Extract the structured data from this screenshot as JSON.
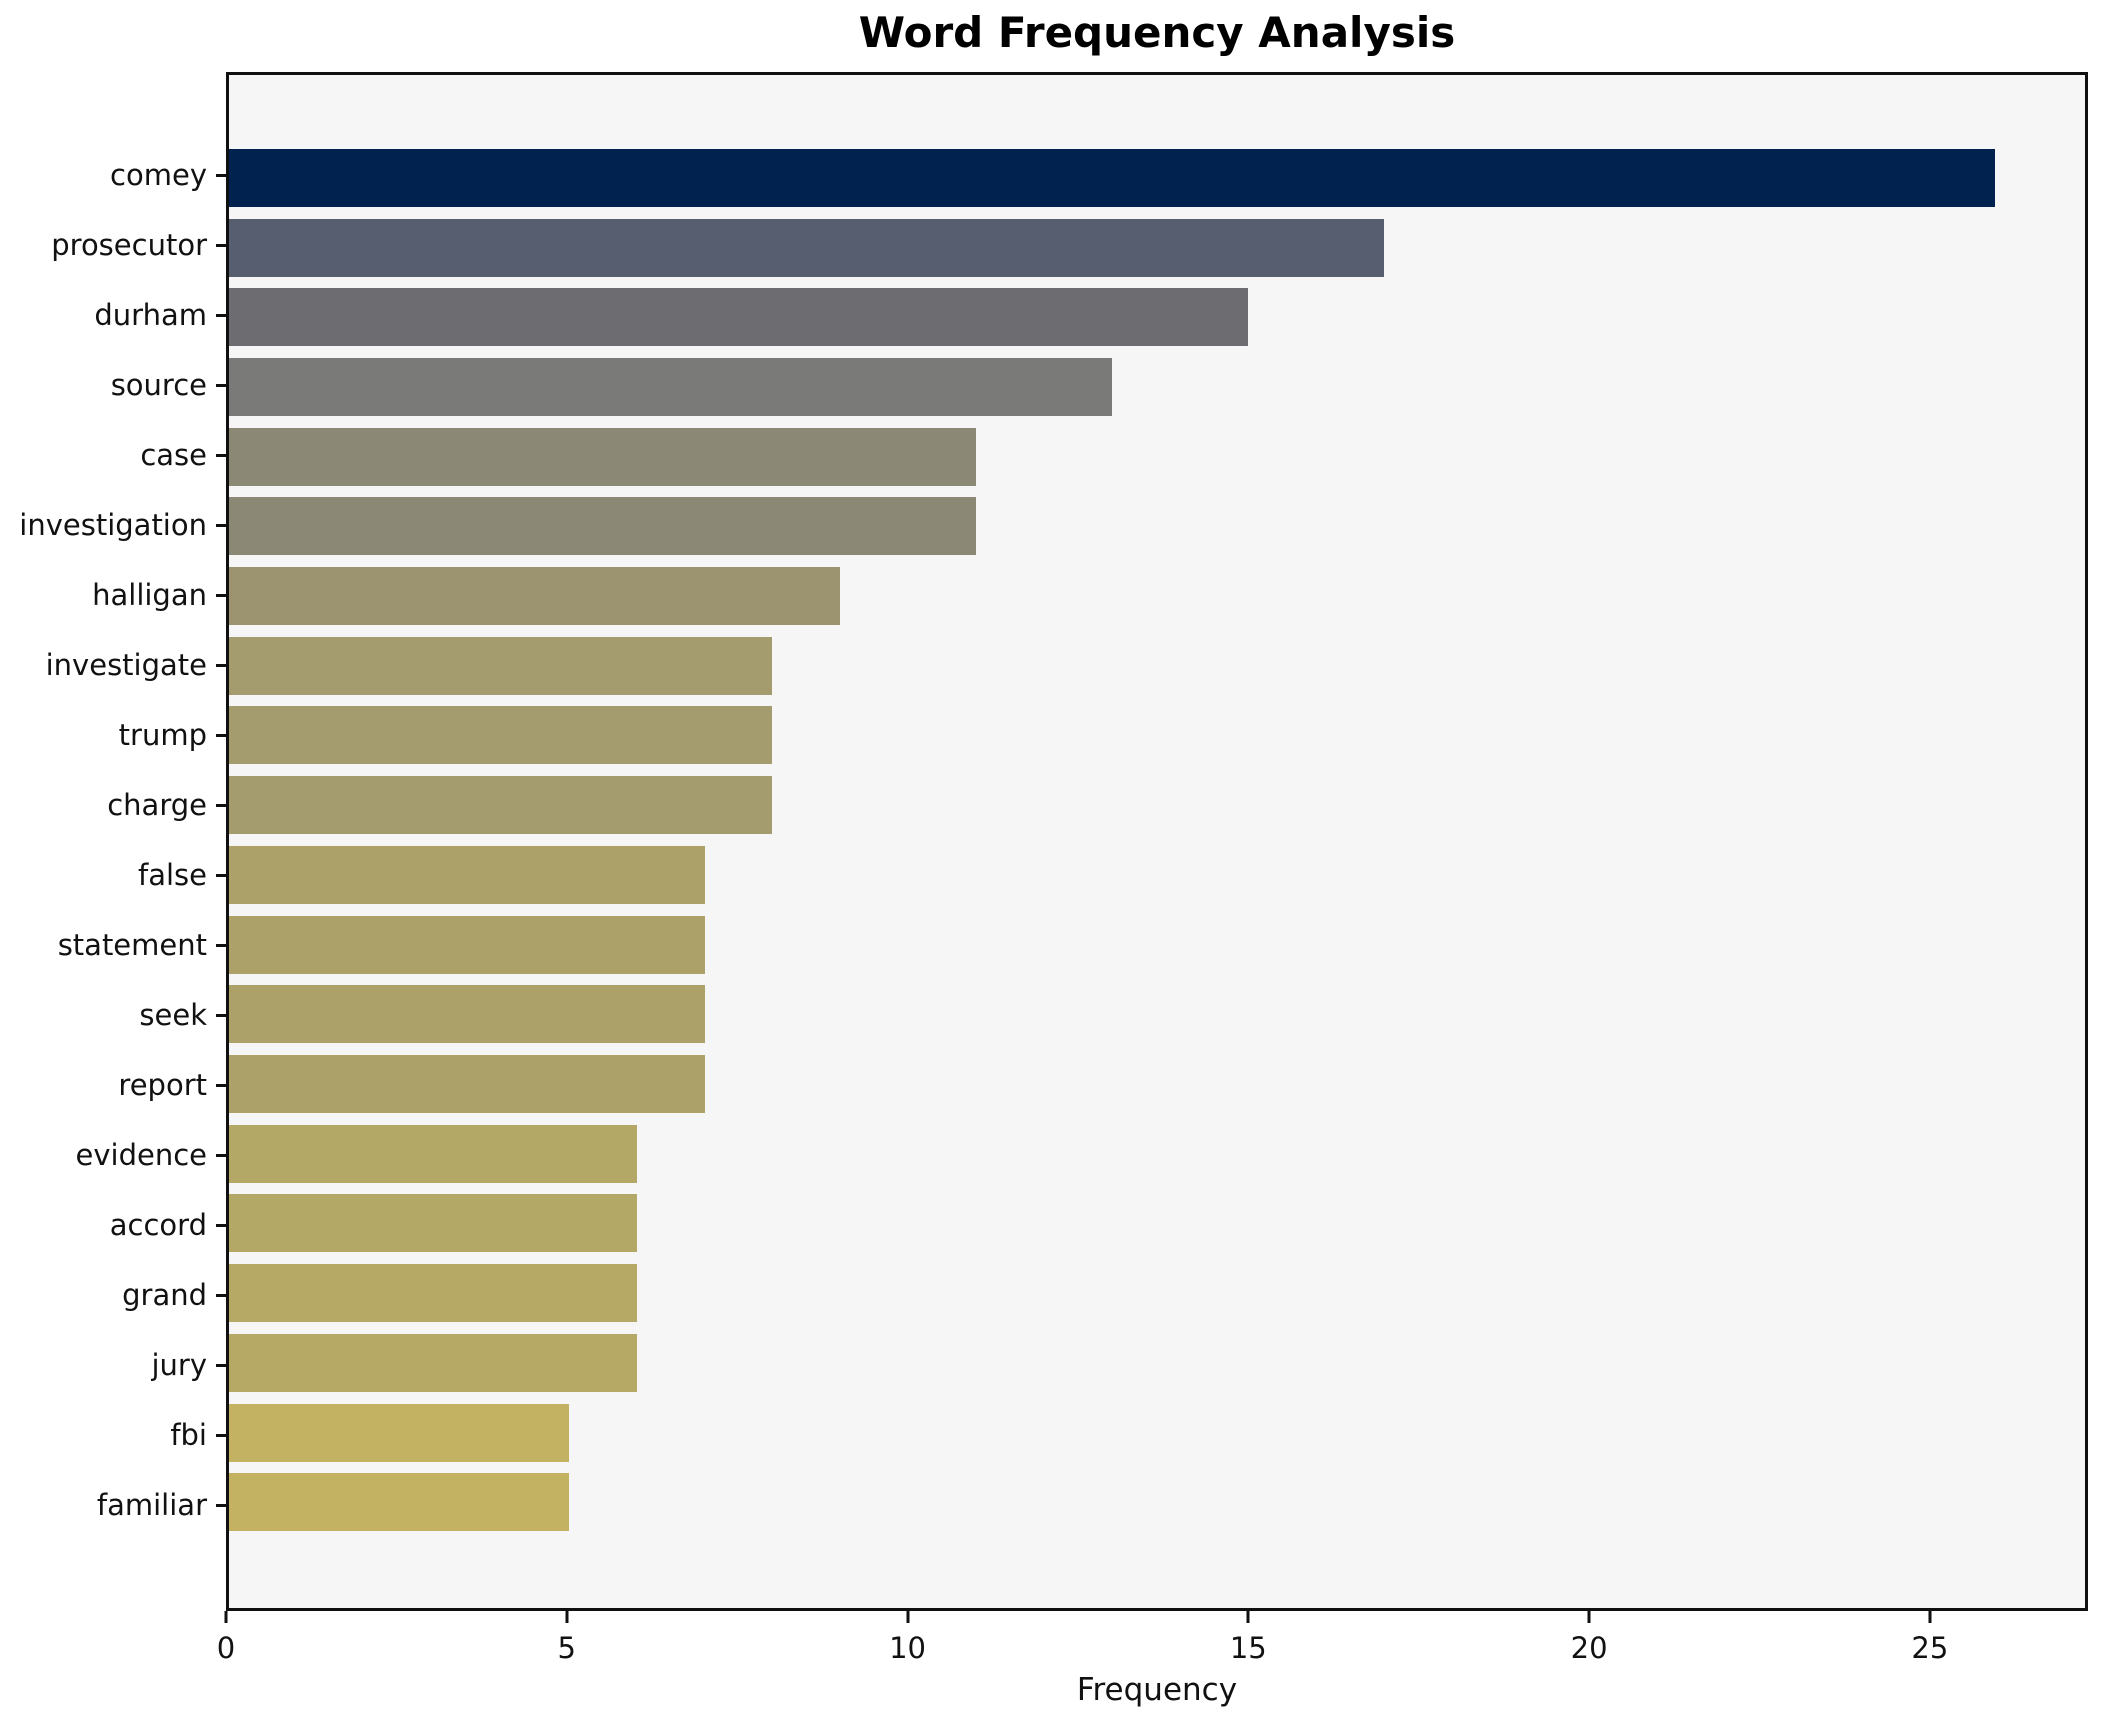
{
  "title": "Word Frequency Analysis",
  "chart_data": {
    "type": "bar",
    "orientation": "horizontal",
    "title": "Word Frequency Analysis",
    "xlabel": "Frequency",
    "ylabel": "",
    "categories": [
      "comey",
      "prosecutor",
      "durham",
      "source",
      "case",
      "investigation",
      "halligan",
      "investigate",
      "trump",
      "charge",
      "false",
      "statement",
      "seek",
      "report",
      "evidence",
      "accord",
      "grand",
      "jury",
      "fbi",
      "familiar"
    ],
    "values": [
      26,
      17,
      15,
      13,
      11,
      11,
      9,
      8,
      8,
      8,
      7,
      7,
      7,
      7,
      6,
      6,
      6,
      6,
      5,
      5
    ],
    "bar_colors": [
      "#01214e",
      "#575e70",
      "#6c6c71",
      "#7a7a78",
      "#8c8876",
      "#8c8876",
      "#9c9470",
      "#a49c6e",
      "#a49c6e",
      "#a49c6e",
      "#aca269",
      "#aca269",
      "#aca269",
      "#aca269",
      "#b4a866",
      "#b4a866",
      "#b5a965",
      "#b5a965",
      "#c2b261",
      "#c2b261"
    ],
    "xlim": [
      0,
      27.32
    ],
    "xticks": [
      0,
      5,
      10,
      15,
      20,
      25
    ],
    "grid": false,
    "legend": null,
    "colormap": "cividis-reversed-by-value",
    "plot_background": "#f6f6f6",
    "figure_background": "#ffffff",
    "spine_color": "#101010",
    "text_color": "#111111"
  }
}
